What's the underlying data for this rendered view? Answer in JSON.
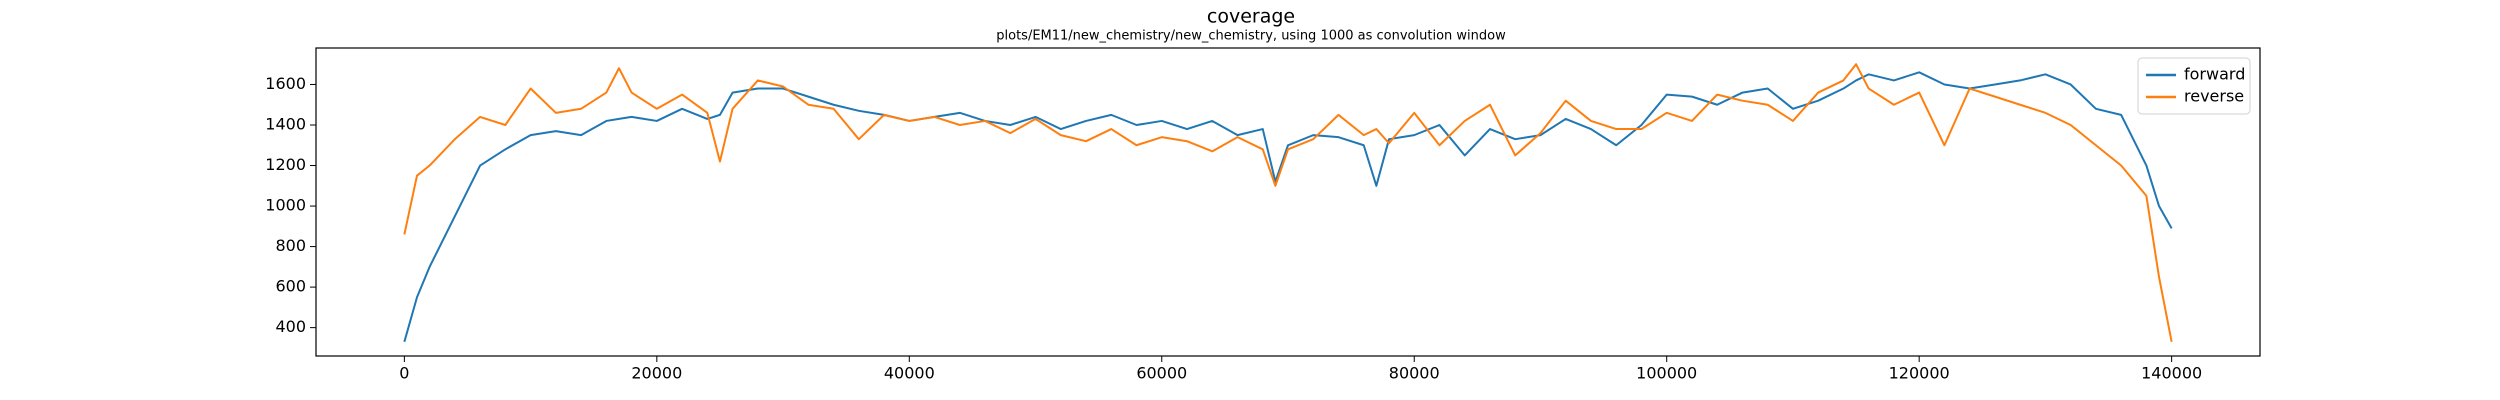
{
  "chart_data": {
    "type": "line",
    "title": "coverage",
    "subtitle": "plots/EM11/new_chemistry/new_chemistry, using 1000 as convolution window",
    "x": [
      0,
      1000,
      2000,
      4000,
      6000,
      8000,
      10000,
      12000,
      14000,
      16000,
      17000,
      18000,
      20000,
      22000,
      24000,
      25000,
      26000,
      28000,
      30000,
      32000,
      34000,
      36000,
      38000,
      40000,
      42000,
      44000,
      46000,
      48000,
      50000,
      52000,
      54000,
      56000,
      58000,
      60000,
      62000,
      64000,
      66000,
      68000,
      69000,
      70000,
      72000,
      74000,
      76000,
      77000,
      78000,
      80000,
      82000,
      84000,
      86000,
      88000,
      90000,
      92000,
      94000,
      96000,
      98000,
      100000,
      102000,
      104000,
      106000,
      108000,
      110000,
      112000,
      114000,
      115000,
      116000,
      118000,
      120000,
      122000,
      124000,
      126000,
      128000,
      130000,
      132000,
      134000,
      136000,
      138000,
      139000,
      140000
    ],
    "series": [
      {
        "name": "forward",
        "color": "#1f77b4",
        "values": [
          330,
          550,
          700,
          950,
          1200,
          1280,
          1350,
          1370,
          1350,
          1420,
          1430,
          1440,
          1420,
          1480,
          1430,
          1450,
          1560,
          1580,
          1580,
          1540,
          1500,
          1470,
          1450,
          1420,
          1440,
          1460,
          1420,
          1400,
          1440,
          1380,
          1420,
          1450,
          1400,
          1420,
          1380,
          1420,
          1350,
          1380,
          1120,
          1300,
          1350,
          1340,
          1300,
          1100,
          1330,
          1350,
          1400,
          1250,
          1380,
          1330,
          1350,
          1430,
          1380,
          1300,
          1400,
          1550,
          1540,
          1500,
          1560,
          1580,
          1480,
          1520,
          1580,
          1620,
          1650,
          1620,
          1660,
          1600,
          1580,
          1600,
          1620,
          1650,
          1600,
          1480,
          1450,
          1200,
          1000,
          890
        ]
      },
      {
        "name": "reverse",
        "color": "#ff7f0e",
        "values": [
          860,
          1150,
          1200,
          1330,
          1440,
          1400,
          1580,
          1460,
          1480,
          1560,
          1680,
          1560,
          1480,
          1550,
          1460,
          1220,
          1480,
          1620,
          1590,
          1500,
          1480,
          1330,
          1450,
          1420,
          1440,
          1400,
          1420,
          1360,
          1430,
          1350,
          1320,
          1380,
          1300,
          1340,
          1320,
          1270,
          1340,
          1280,
          1100,
          1280,
          1330,
          1450,
          1350,
          1380,
          1310,
          1460,
          1300,
          1420,
          1500,
          1250,
          1360,
          1520,
          1420,
          1380,
          1380,
          1460,
          1420,
          1550,
          1520,
          1500,
          1420,
          1560,
          1620,
          1700,
          1580,
          1500,
          1560,
          1300,
          1580,
          1540,
          1500,
          1460,
          1400,
          1300,
          1200,
          1050,
          650,
          330
        ]
      }
    ],
    "xlim": [
      -7000,
      147000
    ],
    "ylim": [
      260,
      1780
    ],
    "xticks": [
      0,
      20000,
      40000,
      60000,
      80000,
      100000,
      120000,
      140000
    ],
    "yticks": [
      400,
      600,
      800,
      1000,
      1200,
      1400,
      1600
    ],
    "legend": "upper right"
  }
}
